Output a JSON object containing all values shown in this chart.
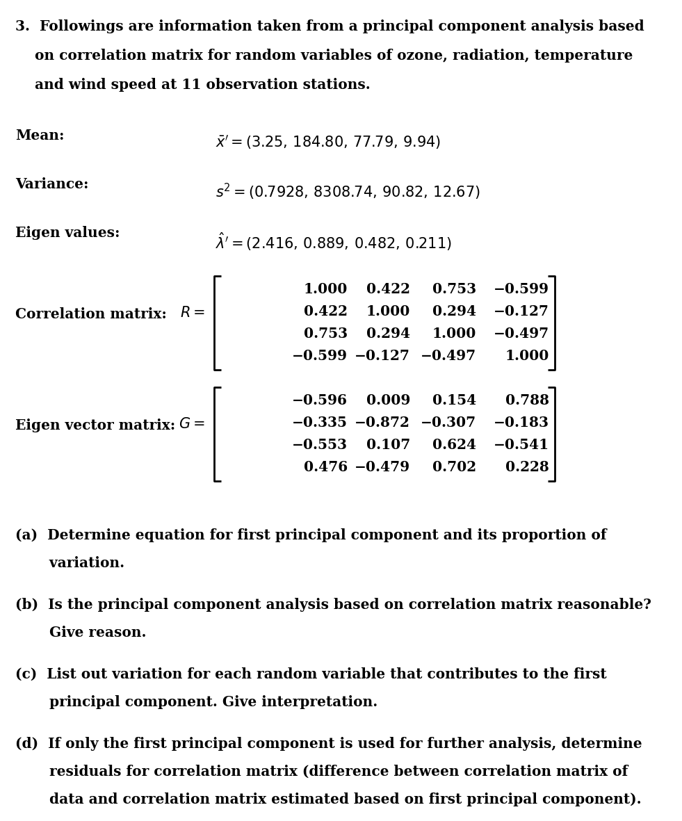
{
  "bg_color": "#ffffff",
  "text_color": "#000000",
  "font_size": 14.5,
  "matrix_font_size": 14.5,
  "label_font_size": 14.5,
  "corr_matrix": [
    [
      1.0,
      0.422,
      0.753,
      -0.599
    ],
    [
      0.422,
      1.0,
      0.294,
      -0.127
    ],
    [
      0.753,
      0.294,
      1.0,
      -0.497
    ],
    [
      -0.599,
      -0.127,
      -0.497,
      1.0
    ]
  ],
  "eigenvec_matrix": [
    [
      -0.596,
      0.009,
      0.154,
      0.788
    ],
    [
      -0.335,
      -0.872,
      -0.307,
      -0.183
    ],
    [
      -0.553,
      0.107,
      0.624,
      -0.541
    ],
    [
      0.476,
      -0.479,
      0.702,
      0.228
    ]
  ]
}
